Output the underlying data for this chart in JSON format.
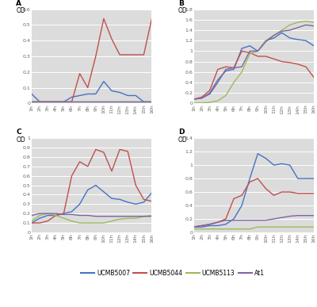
{
  "x_labels": [
    "1h",
    "2h",
    "3h",
    "4h",
    "5h",
    "6h",
    "7h",
    "8h",
    "9h",
    "10h",
    "11h",
    "12h",
    "13h",
    "14h",
    "15h",
    "16h"
  ],
  "x_vals": [
    1,
    2,
    3,
    4,
    5,
    6,
    7,
    8,
    9,
    10,
    11,
    12,
    13,
    14,
    15,
    16
  ],
  "A": {
    "ylim": [
      0,
      0.6
    ],
    "yticks": [
      0.0,
      0.1,
      0.2,
      0.3,
      0.4,
      0.5,
      0.6
    ],
    "ytick_labels": [
      "0",
      "0.1",
      "0.2",
      "0.3",
      "0.4",
      "0.5",
      "0.6"
    ],
    "UCMB5007": [
      0.06,
      0.01,
      0.01,
      0.01,
      0.01,
      0.04,
      0.05,
      0.06,
      0.06,
      0.14,
      0.08,
      0.07,
      0.05,
      0.05,
      0.01,
      0.01
    ],
    "UCMB5044": [
      0.01,
      0.01,
      0.01,
      0.01,
      0.01,
      0.01,
      0.19,
      0.1,
      0.3,
      0.54,
      0.41,
      0.31,
      0.31,
      0.31,
      0.31,
      0.54
    ],
    "UCMB5113": [
      0.01,
      0.01,
      0.01,
      0.01,
      0.01,
      0.01,
      0.01,
      0.01,
      0.01,
      0.01,
      0.01,
      0.01,
      0.01,
      0.01,
      0.01,
      0.01
    ],
    "At1": [
      0.01,
      0.01,
      0.01,
      0.01,
      0.01,
      0.01,
      0.01,
      0.01,
      0.01,
      0.01,
      0.01,
      0.01,
      0.01,
      0.01,
      0.01,
      0.01
    ]
  },
  "B": {
    "ylim": [
      0,
      1.8
    ],
    "yticks": [
      0.0,
      0.2,
      0.4,
      0.6,
      0.8,
      1.0,
      1.2,
      1.4,
      1.6,
      1.8
    ],
    "ytick_labels": [
      "0",
      "0.2",
      "0.4",
      "0.6",
      "0.8",
      "1",
      "1.2",
      "1.4",
      "1.6",
      "1.8"
    ],
    "UCMB5007": [
      0.08,
      0.1,
      0.2,
      0.45,
      0.62,
      0.65,
      1.05,
      1.1,
      1.0,
      1.2,
      1.25,
      1.35,
      1.25,
      1.22,
      1.2,
      1.1
    ],
    "UCMB5044": [
      0.08,
      0.12,
      0.25,
      0.65,
      0.7,
      0.68,
      1.0,
      0.97,
      0.9,
      0.9,
      0.85,
      0.8,
      0.78,
      0.75,
      0.7,
      0.5
    ],
    "UCMB5113": [
      0.01,
      0.01,
      0.02,
      0.05,
      0.15,
      0.4,
      0.6,
      0.95,
      1.0,
      1.2,
      1.3,
      1.4,
      1.5,
      1.55,
      1.57,
      1.55
    ],
    "At1": [
      0.08,
      0.1,
      0.18,
      0.4,
      0.65,
      0.68,
      0.7,
      1.0,
      1.0,
      1.18,
      1.3,
      1.38,
      1.4,
      1.45,
      1.5,
      1.48
    ]
  },
  "C": {
    "ylim": [
      0,
      1.0
    ],
    "yticks": [
      0.0,
      0.1,
      0.2,
      0.3,
      0.4,
      0.5,
      0.6,
      0.7,
      0.8,
      0.9,
      1.0
    ],
    "ytick_labels": [
      "0",
      "0.1",
      "0.2",
      "0.3",
      "0.4",
      "0.5",
      "0.6",
      "0.7",
      "0.8",
      "0.9",
      "1"
    ],
    "UCMB5007": [
      0.1,
      0.15,
      0.18,
      0.18,
      0.2,
      0.22,
      0.3,
      0.45,
      0.5,
      0.43,
      0.36,
      0.35,
      0.32,
      0.3,
      0.32,
      0.42
    ],
    "UCMB5044": [
      0.1,
      0.1,
      0.12,
      0.18,
      0.2,
      0.6,
      0.75,
      0.7,
      0.88,
      0.85,
      0.65,
      0.88,
      0.86,
      0.5,
      0.35,
      0.33
    ],
    "UCMB5113": [
      0.12,
      0.18,
      0.2,
      0.18,
      0.15,
      0.12,
      0.1,
      0.1,
      0.1,
      0.1,
      0.12,
      0.14,
      0.15,
      0.15,
      0.17,
      0.18
    ],
    "At1": [
      0.18,
      0.2,
      0.2,
      0.2,
      0.19,
      0.19,
      0.18,
      0.18,
      0.17,
      0.17,
      0.17,
      0.17,
      0.17,
      0.17,
      0.17,
      0.17
    ]
  },
  "D": {
    "ylim": [
      0,
      1.4
    ],
    "yticks": [
      0.0,
      0.2,
      0.4,
      0.6,
      0.8,
      1.0,
      1.2,
      1.4
    ],
    "ytick_labels": [
      "0",
      "0.2",
      "0.4",
      "0.6",
      "0.8",
      "1",
      "1.2",
      "1.4"
    ],
    "UCMB5007": [
      0.08,
      0.08,
      0.1,
      0.1,
      0.12,
      0.2,
      0.4,
      0.8,
      1.17,
      1.1,
      1.0,
      1.02,
      1.0,
      0.8,
      0.8,
      0.8
    ],
    "UCMB5044": [
      0.08,
      0.1,
      0.12,
      0.15,
      0.2,
      0.5,
      0.55,
      0.75,
      0.8,
      0.65,
      0.55,
      0.6,
      0.6,
      0.58,
      0.58,
      0.58
    ],
    "UCMB5113": [
      0.05,
      0.05,
      0.05,
      0.05,
      0.05,
      0.05,
      0.05,
      0.05,
      0.08,
      0.08,
      0.08,
      0.08,
      0.08,
      0.08,
      0.08,
      0.08
    ],
    "At1": [
      0.08,
      0.1,
      0.12,
      0.15,
      0.18,
      0.18,
      0.18,
      0.18,
      0.18,
      0.18,
      0.2,
      0.22,
      0.24,
      0.25,
      0.25,
      0.25
    ]
  },
  "colors": {
    "UCMB5007": "#4472C4",
    "UCMB5044": "#C0504D",
    "UCMB5113": "#9BBB59",
    "At1": "#8064A2"
  },
  "strains": [
    "UCMB5007",
    "UCMB5044",
    "UCMB5113",
    "At1"
  ],
  "panel_bg": "#DCDCDC",
  "fig_bg": "#FFFFFF",
  "grid_color": "#FFFFFF",
  "linewidth": 1.0,
  "tick_fontsize": 4.5,
  "label_color": "#666666"
}
